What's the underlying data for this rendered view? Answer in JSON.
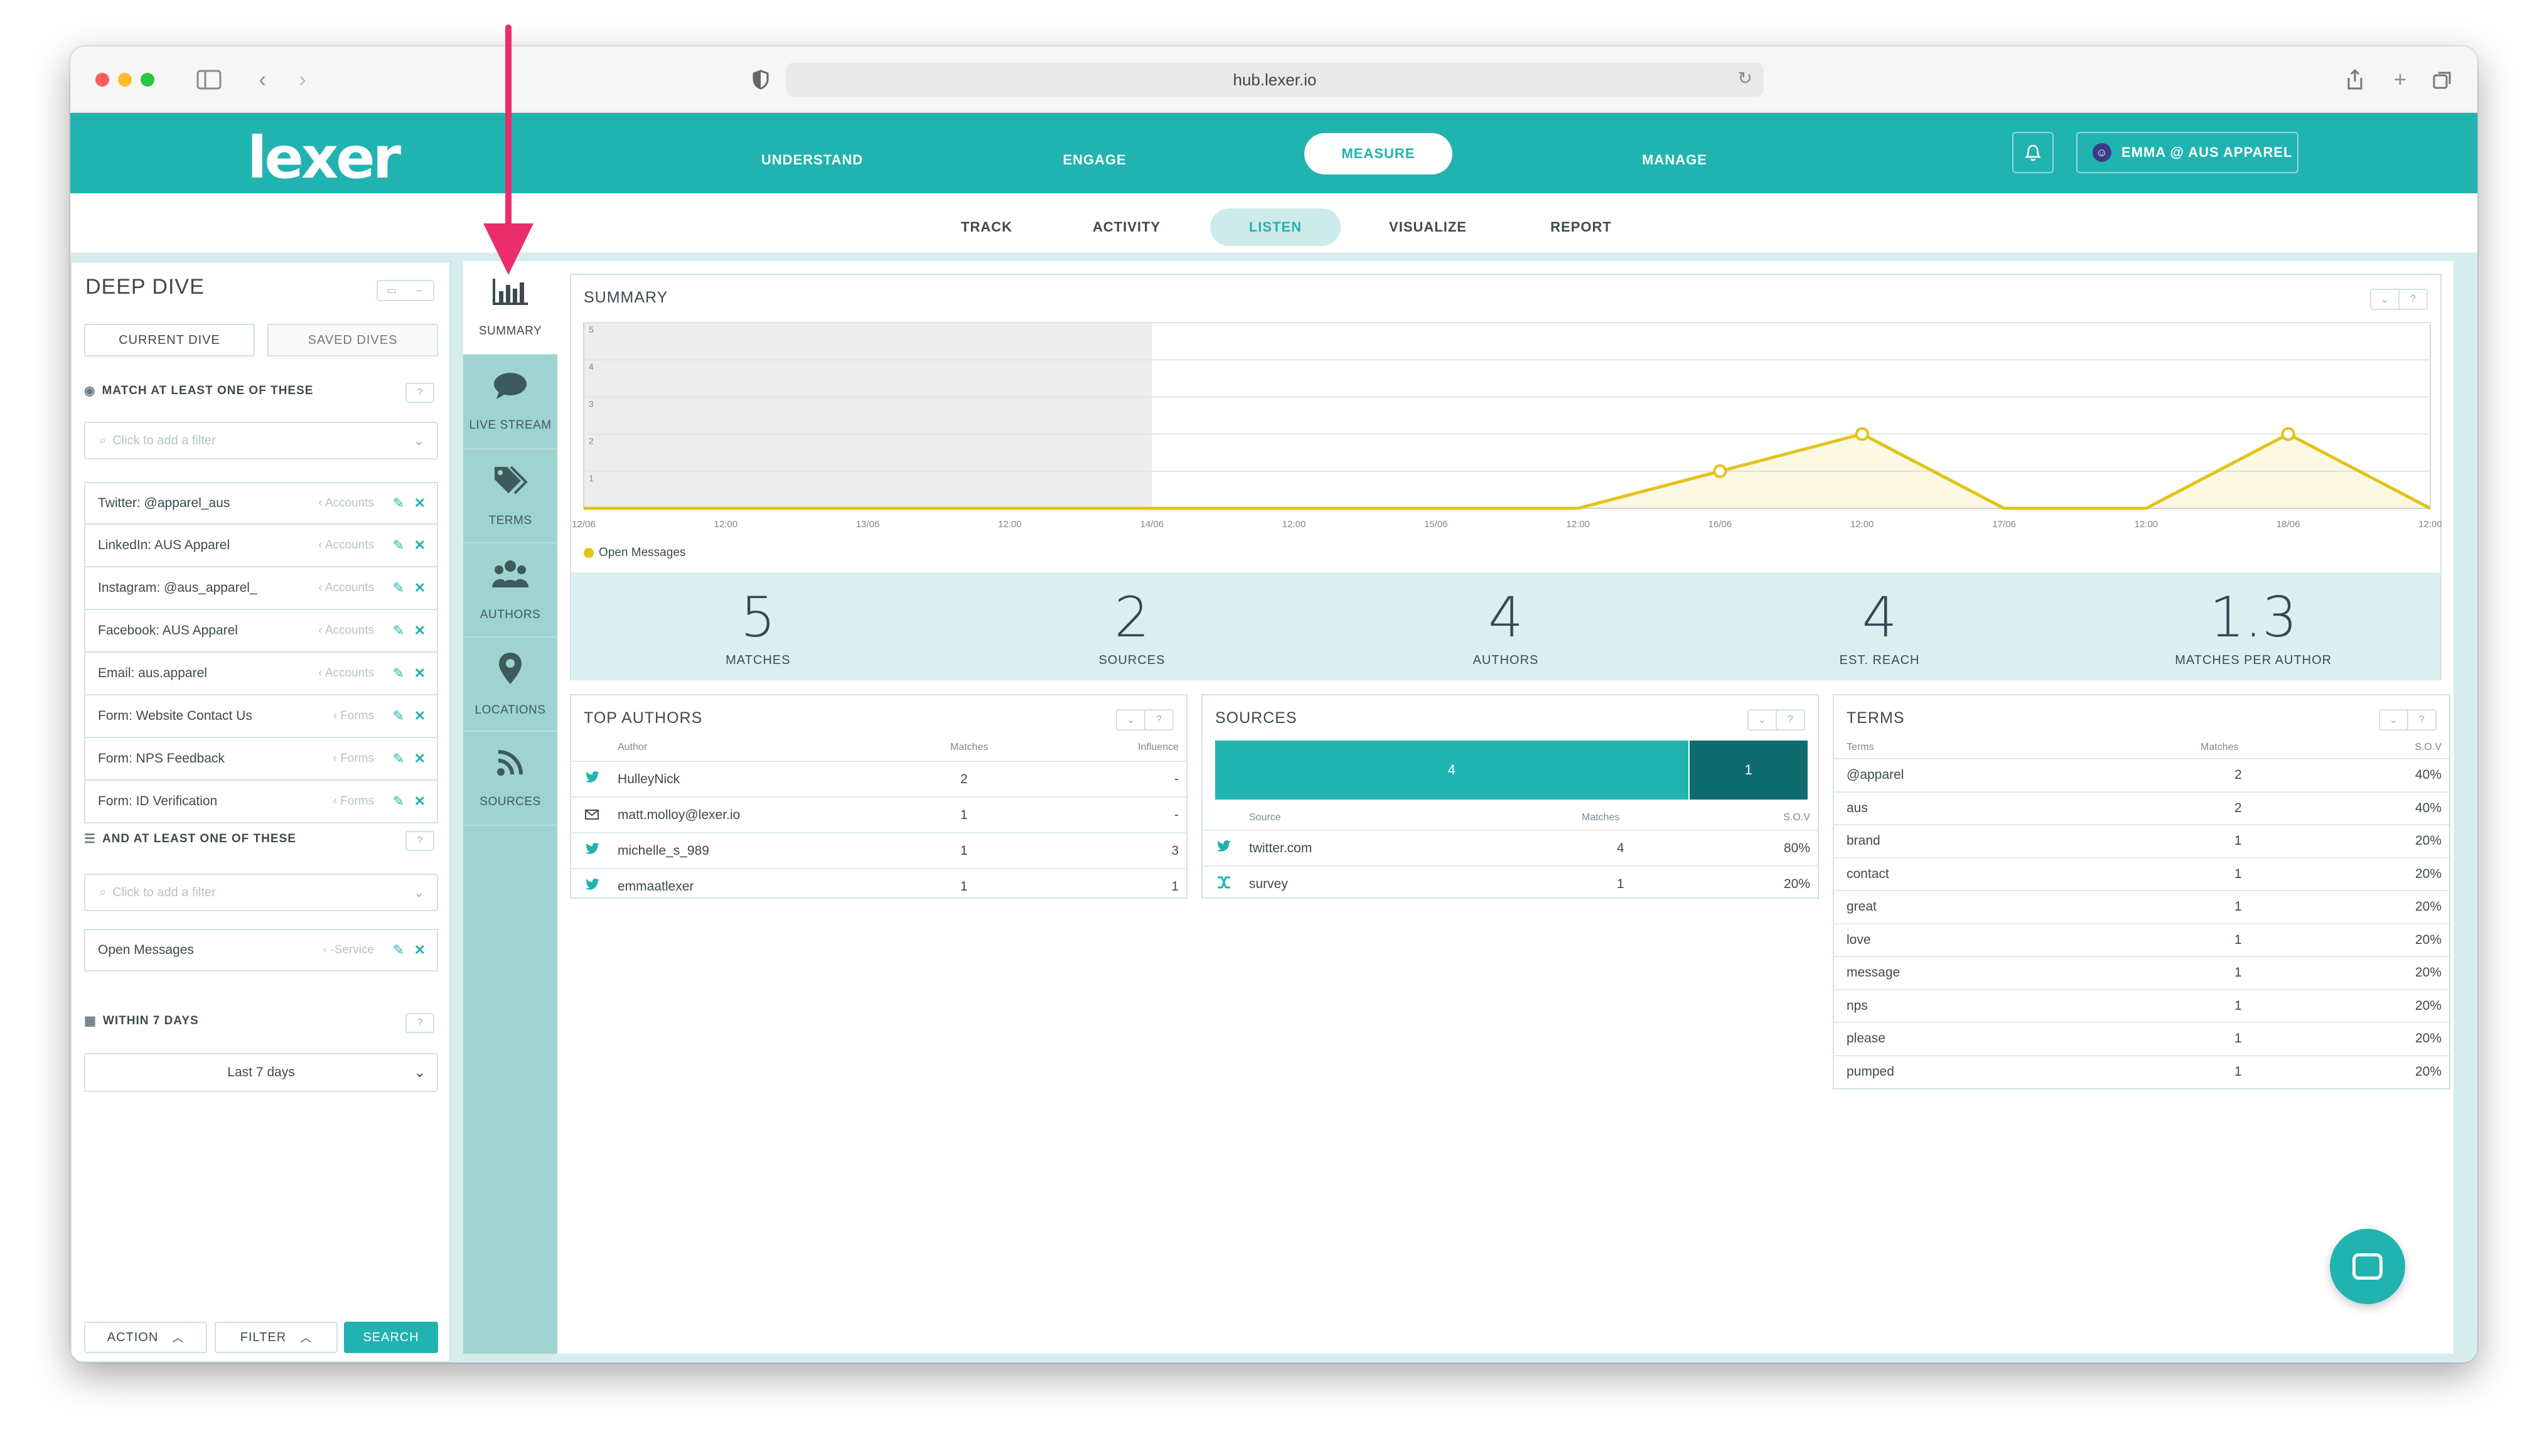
{
  "browser": {
    "url": "hub.lexer.io"
  },
  "brand": {
    "logo": "lexer",
    "accent": "#21b3b0",
    "dark_accent": "#0e6b6e",
    "highlight_arrow": "#ea2e6c"
  },
  "main_nav": {
    "items": [
      "UNDERSTAND",
      "ENGAGE",
      "MEASURE",
      "MANAGE"
    ],
    "active": "MEASURE"
  },
  "user": {
    "label": "EMMA @ AUS APPAREL"
  },
  "sub_nav": {
    "items": [
      "TRACK",
      "ACTIVITY",
      "LISTEN",
      "VISUALIZE",
      "REPORT"
    ],
    "active": "LISTEN"
  },
  "deep_dive": {
    "title": "DEEP DIVE",
    "tabs": [
      "CURRENT DIVE",
      "SAVED DIVES"
    ],
    "match_label": "MATCH AT LEAST ONE OF THESE",
    "filter_placeholder": "Click to add a filter",
    "filters": [
      {
        "label": "Twitter: @apparel_aus",
        "meta": "Accounts"
      },
      {
        "label": "LinkedIn: AUS Apparel",
        "meta": "Accounts"
      },
      {
        "label": "Instagram: @aus_apparel_",
        "meta": "Accounts"
      },
      {
        "label": "Facebook: AUS Apparel",
        "meta": "Accounts"
      },
      {
        "label": "Email: aus.apparel",
        "meta": "Accounts"
      },
      {
        "label": "Form: Website Contact Us",
        "meta": "Forms"
      },
      {
        "label": "Form: NPS Feedback",
        "meta": "Forms"
      },
      {
        "label": "Form: ID Verification",
        "meta": "Forms"
      }
    ],
    "and_label": "AND AT LEAST ONE OF THESE",
    "and_placeholder": "Click to add a filter",
    "and_filters": [
      {
        "label": "Open Messages",
        "meta": "-Service"
      }
    ],
    "within_label": "WITHIN 7 DAYS",
    "within_value": "Last 7 days",
    "actions": {
      "action": "ACTION",
      "filter": "FILTER",
      "search": "SEARCH"
    }
  },
  "side_nav": {
    "items": [
      "SUMMARY",
      "LIVE STREAM",
      "TERMS",
      "AUTHORS",
      "LOCATIONS",
      "SOURCES"
    ],
    "active": "SUMMARY"
  },
  "summary": {
    "title": "SUMMARY",
    "legend": "Open Messages",
    "stats": [
      {
        "value": "5",
        "label": "MATCHES"
      },
      {
        "value": "2",
        "label": "SOURCES"
      },
      {
        "value": "4",
        "label": "AUTHORS"
      },
      {
        "value": "4",
        "label": "EST. REACH"
      },
      {
        "value": "1.3",
        "label": "MATCHES PER AUTHOR"
      }
    ]
  },
  "chart_data": {
    "type": "area",
    "x": [
      "12/06",
      "12:00",
      "13/06",
      "12:00",
      "14/06",
      "12:00",
      "15/06",
      "12:00",
      "16/06",
      "12:00",
      "17/06",
      "12:00",
      "18/06",
      "12:00"
    ],
    "series": [
      {
        "name": "Open Messages",
        "values": [
          0,
          0,
          0,
          0,
          0,
          0,
          0,
          0,
          1,
          2,
          0,
          0,
          2,
          0
        ],
        "color": "#e2c31a"
      }
    ],
    "y_ticks": [
      "5",
      "4",
      "3",
      "2",
      "1"
    ],
    "ylim": [
      0,
      5
    ],
    "grid": true,
    "legend": "bottom-left"
  },
  "top_authors": {
    "title": "TOP AUTHORS",
    "headers": [
      "Author",
      "Matches",
      "Influence"
    ],
    "rows": [
      {
        "icon": "twitter-icon",
        "name": "HulleyNick",
        "matches": "2",
        "influence": "-"
      },
      {
        "icon": "email-icon",
        "name": "matt.molloy@lexer.io",
        "matches": "1",
        "influence": "-"
      },
      {
        "icon": "twitter-icon",
        "name": "michelle_s_989",
        "matches": "1",
        "influence": "3"
      },
      {
        "icon": "twitter-icon",
        "name": "emmaatlexer",
        "matches": "1",
        "influence": "1"
      }
    ]
  },
  "sources": {
    "title": "SOURCES",
    "bar": [
      {
        "value": "4",
        "share": 0.8
      },
      {
        "value": "1",
        "share": 0.2
      }
    ],
    "headers": [
      "Source",
      "Matches",
      "S.O.V"
    ],
    "rows": [
      {
        "icon": "twitter-icon",
        "name": "twitter.com",
        "matches": "4",
        "sov": "80%"
      },
      {
        "icon": "survey-icon",
        "name": "survey",
        "matches": "1",
        "sov": "20%"
      }
    ]
  },
  "terms": {
    "title": "TERMS",
    "headers": [
      "Terms",
      "Matches",
      "S.O.V"
    ],
    "rows": [
      {
        "term": "@apparel",
        "matches": "2",
        "sov": "40%"
      },
      {
        "term": "aus",
        "matches": "2",
        "sov": "40%"
      },
      {
        "term": "brand",
        "matches": "1",
        "sov": "20%"
      },
      {
        "term": "contact",
        "matches": "1",
        "sov": "20%"
      },
      {
        "term": "great",
        "matches": "1",
        "sov": "20%"
      },
      {
        "term": "love",
        "matches": "1",
        "sov": "20%"
      },
      {
        "term": "message",
        "matches": "1",
        "sov": "20%"
      },
      {
        "term": "nps",
        "matches": "1",
        "sov": "20%"
      },
      {
        "term": "please",
        "matches": "1",
        "sov": "20%"
      },
      {
        "term": "pumped",
        "matches": "1",
        "sov": "20%"
      }
    ]
  }
}
